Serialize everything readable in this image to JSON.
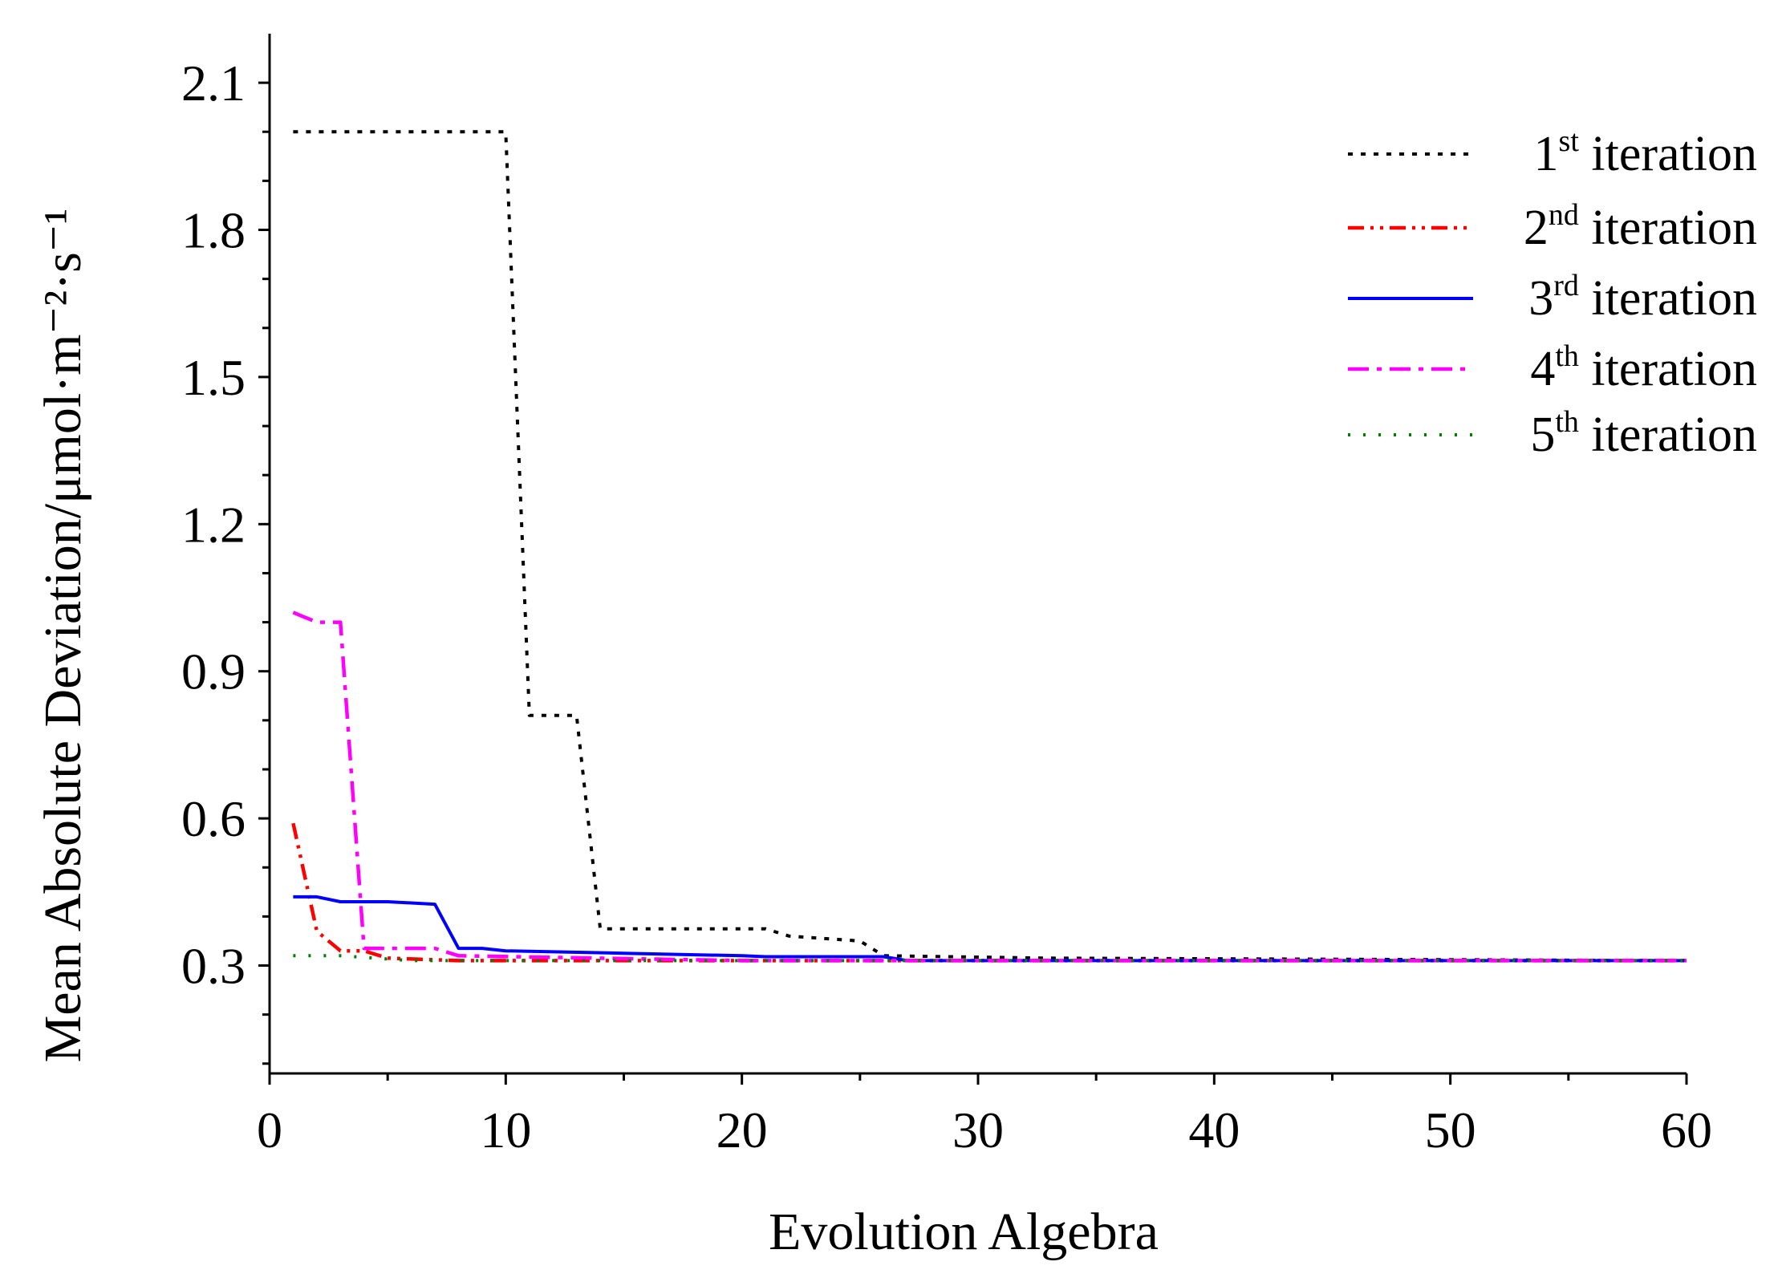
{
  "chart_data": {
    "type": "line",
    "title": "",
    "xlabel": "Evolution Algebra",
    "ylabel": "Mean Absolute Deviation/μmol·m⁻²·s⁻¹",
    "xlim": [
      0,
      60
    ],
    "ylim": [
      0.08,
      2.2
    ],
    "x_ticks": [
      0,
      10,
      20,
      30,
      40,
      50,
      60
    ],
    "x_tick_labels": [
      "0",
      "10",
      "20",
      "30",
      "40",
      "50",
      "60"
    ],
    "y_ticks": [
      0.3,
      0.6,
      0.9,
      1.2,
      1.5,
      1.8,
      2.1
    ],
    "y_tick_labels": [
      "0.3",
      "0.6",
      "0.9",
      "1.2",
      "1.5",
      "1.8",
      "2.1"
    ],
    "grid": false,
    "legend_position": "top-right",
    "series": [
      {
        "name": "1st iteration",
        "legend_main": "1",
        "legend_sup": "st",
        "legend_rest": " iteration",
        "color": "#000000",
        "style": "dotted",
        "x": [
          1,
          10,
          11,
          13,
          14,
          21,
          22,
          25,
          26,
          33,
          60
        ],
        "y": [
          2.0,
          2.0,
          0.81,
          0.81,
          0.375,
          0.375,
          0.36,
          0.35,
          0.32,
          0.315,
          0.31
        ]
      },
      {
        "name": "2nd iteration",
        "legend_main": "2",
        "legend_sup": "nd",
        "legend_rest": " iteration",
        "color": "#ff0000",
        "style": "dash-dot-dot",
        "x": [
          1,
          2,
          3,
          4,
          5,
          8,
          60
        ],
        "y": [
          0.59,
          0.37,
          0.33,
          0.33,
          0.315,
          0.31,
          0.31
        ]
      },
      {
        "name": "3rd iteration",
        "legend_main": "3",
        "legend_sup": "rd",
        "legend_rest": " iteration",
        "color": "#0000ff",
        "style": "solid",
        "x": [
          1,
          2,
          3,
          5,
          7,
          8,
          9,
          10,
          15,
          20,
          21,
          26,
          27,
          60
        ],
        "y": [
          0.44,
          0.44,
          0.43,
          0.43,
          0.425,
          0.335,
          0.335,
          0.33,
          0.325,
          0.32,
          0.318,
          0.318,
          0.31,
          0.31
        ]
      },
      {
        "name": "4th iteration",
        "legend_main": "4",
        "legend_sup": "th",
        "legend_rest": " iteration",
        "color": "#ff00ff",
        "style": "dash-dot",
        "x": [
          1,
          2,
          3,
          4,
          7,
          8,
          20,
          60
        ],
        "y": [
          1.02,
          1.0,
          1.0,
          0.335,
          0.335,
          0.32,
          0.31,
          0.31
        ]
      },
      {
        "name": "5th iteration",
        "legend_main": "5",
        "legend_sup": "th",
        "legend_rest": " iteration",
        "color": "#008000",
        "style": "sparse-dotted",
        "x": [
          1,
          3,
          6,
          60
        ],
        "y": [
          0.32,
          0.32,
          0.31,
          0.31
        ]
      }
    ]
  }
}
